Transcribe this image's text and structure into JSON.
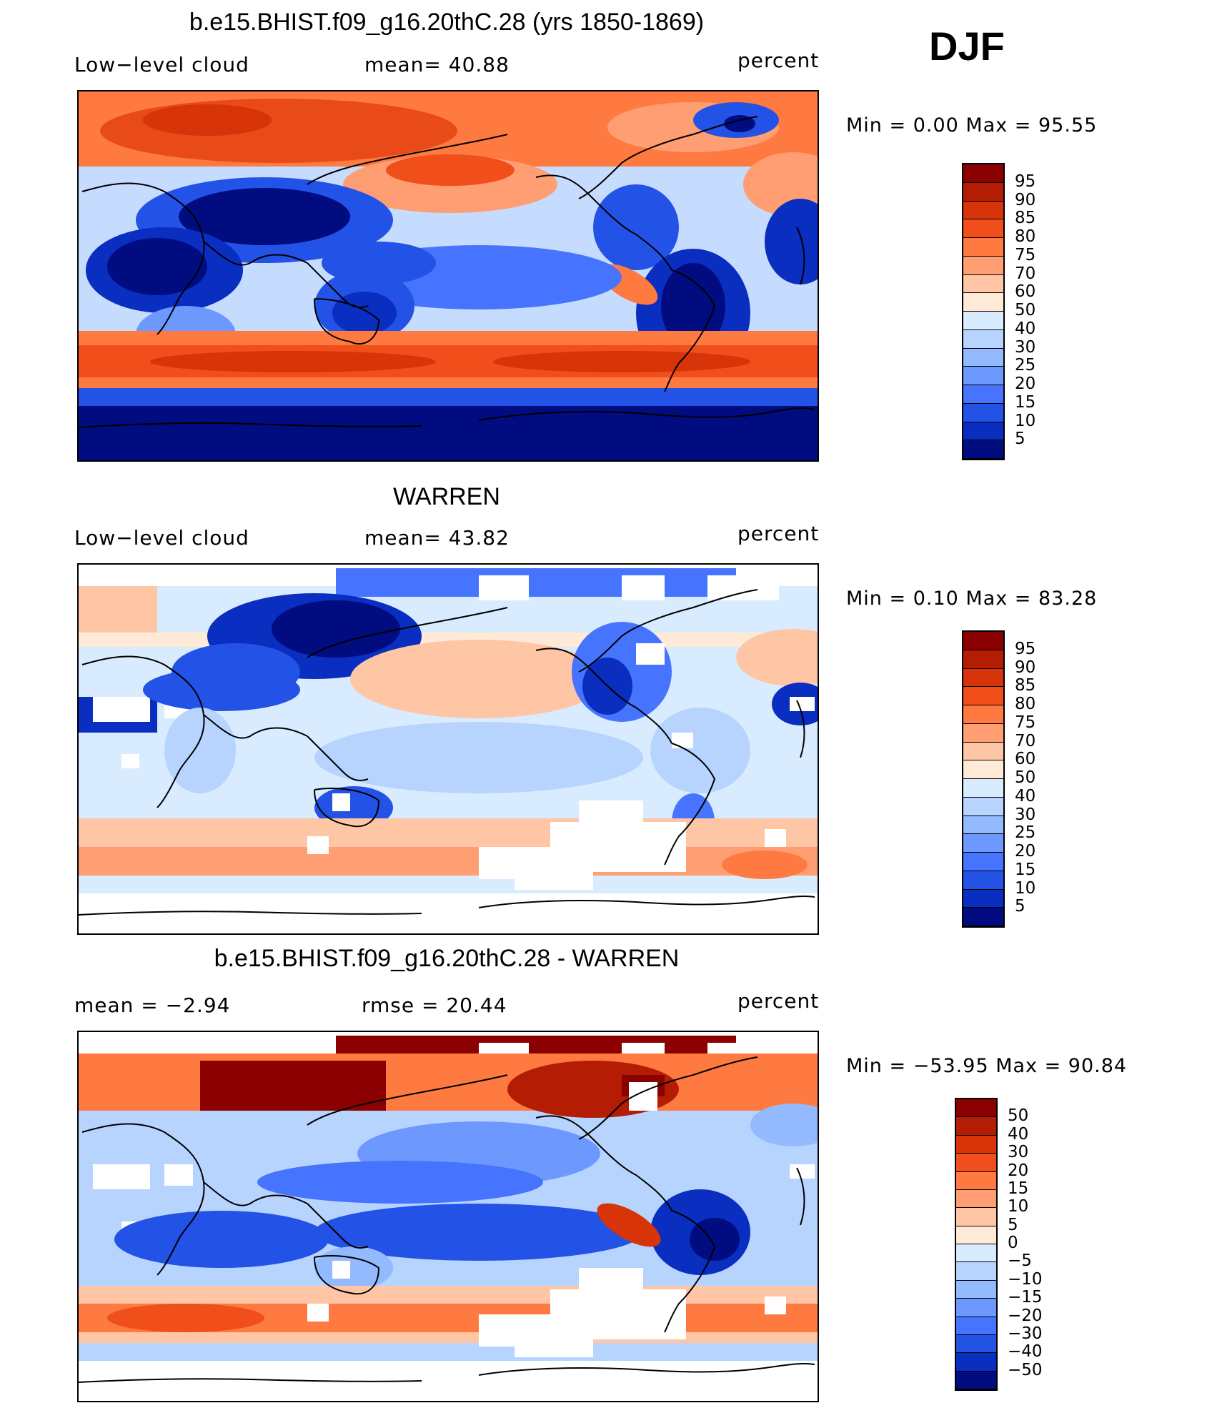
{
  "season": "DJF",
  "panels": [
    {
      "title": "b.e15.BHIST.f09_g16.20thC.28 (yrs 1850-1869)",
      "left_label": "Low−level cloud",
      "center_label": "mean=   40.88",
      "right_label": "percent",
      "minmax": "Min =    0.00 Max =   95.55",
      "kind": "model",
      "colorbar": {
        "colors": [
          "#8b0000",
          "#b51c04",
          "#d8340a",
          "#f04f1c",
          "#ff7a40",
          "#ff9e72",
          "#ffc6a6",
          "#ffead8",
          "#d9ecff",
          "#b7d4ff",
          "#93b9ff",
          "#6d99ff",
          "#4774ff",
          "#2352e6",
          "#0a2ec0",
          "#000c80"
        ],
        "labels": [
          "95",
          "90",
          "85",
          "80",
          "75",
          "70",
          "60",
          "50",
          "40",
          "30",
          "25",
          "20",
          "15",
          "10",
          "5"
        ]
      }
    },
    {
      "title": "WARREN",
      "left_label": "Low−level cloud",
      "center_label": "mean=   43.82",
      "right_label": "percent",
      "minmax": "Min =    0.10 Max =   83.28",
      "kind": "obs",
      "colorbar": {
        "colors": [
          "#8b0000",
          "#b51c04",
          "#d8340a",
          "#f04f1c",
          "#ff7a40",
          "#ff9e72",
          "#ffc6a6",
          "#ffead8",
          "#d9ecff",
          "#b7d4ff",
          "#93b9ff",
          "#6d99ff",
          "#4774ff",
          "#2352e6",
          "#0a2ec0",
          "#000c80"
        ],
        "labels": [
          "95",
          "90",
          "85",
          "80",
          "75",
          "70",
          "60",
          "50",
          "40",
          "30",
          "25",
          "20",
          "15",
          "10",
          "5"
        ]
      }
    },
    {
      "title": "b.e15.BHIST.f09_g16.20thC.28 - WARREN",
      "left_label": "mean =   −2.94",
      "center_label": "rmse =   20.44",
      "right_label": "percent",
      "minmax": "Min = −53.95 Max =   90.84",
      "kind": "diff",
      "colorbar": {
        "colors": [
          "#8b0000",
          "#b51c04",
          "#d8340a",
          "#f04f1c",
          "#ff7a40",
          "#ff9e72",
          "#ffc6a6",
          "#ffead8",
          "#d9ecff",
          "#b7d4ff",
          "#93b9ff",
          "#6d99ff",
          "#4774ff",
          "#2352e6",
          "#0a2ec0",
          "#000c80"
        ],
        "labels": [
          "50",
          "40",
          "30",
          "20",
          "15",
          "10",
          "5",
          "0",
          "−5",
          "−10",
          "−15",
          "−20",
          "−30",
          "−40",
          "−50"
        ]
      }
    }
  ]
}
